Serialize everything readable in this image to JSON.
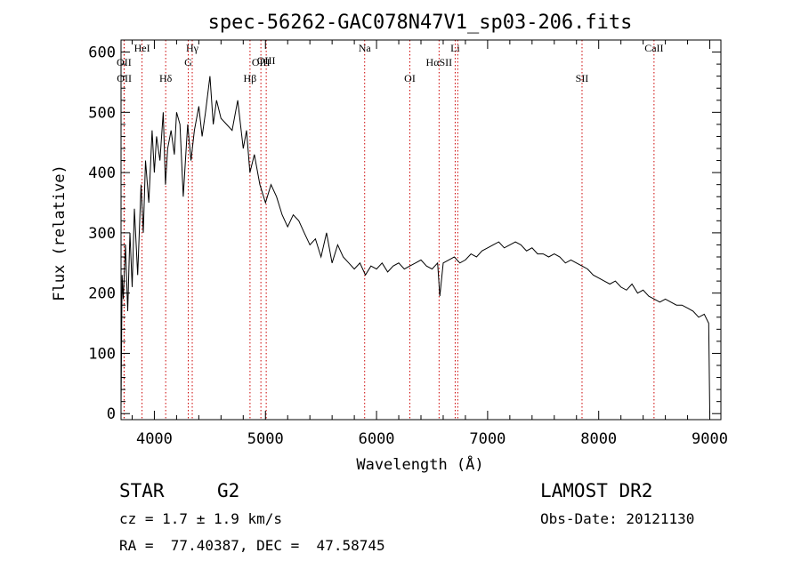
{
  "chart_data": {
    "type": "line",
    "title": "spec-56262-GAC078N47V1_sp03-206.fits",
    "xlabel": "Wavelength (Å)",
    "ylabel": "Flux (relative)",
    "xlim": [
      3700,
      9100
    ],
    "ylim": [
      -10,
      620
    ],
    "x_ticks": [
      4000,
      5000,
      6000,
      7000,
      8000,
      9000
    ],
    "y_ticks": [
      0,
      100,
      200,
      300,
      400,
      500,
      600
    ],
    "grid": false,
    "line_color": "#000000",
    "marker_color": "#cc0000",
    "series": [
      {
        "x": [
          3700,
          3710,
          3720,
          3740,
          3760,
          3780,
          3800,
          3820,
          3850,
          3880,
          3900,
          3920,
          3950,
          3980,
          4000,
          4020,
          4050,
          4080,
          4100,
          4120,
          4150,
          4180,
          4200,
          4230,
          4260,
          4290,
          4300,
          4330,
          4360,
          4400,
          4430,
          4460,
          4500,
          4530,
          4560,
          4600,
          4650,
          4700,
          4750,
          4800,
          4830,
          4860,
          4900,
          4950,
          5000,
          5050,
          5100,
          5150,
          5200,
          5250,
          5300,
          5350,
          5400,
          5450,
          5500,
          5550,
          5600,
          5650,
          5700,
          5750,
          5800,
          5850,
          5900,
          5950,
          6000,
          6050,
          6100,
          6150,
          6200,
          6250,
          6300,
          6350,
          6400,
          6450,
          6500,
          6550,
          6570,
          6600,
          6650,
          6700,
          6750,
          6800,
          6850,
          6900,
          6950,
          7000,
          7050,
          7100,
          7150,
          7200,
          7250,
          7300,
          7350,
          7400,
          7450,
          7500,
          7550,
          7600,
          7650,
          7700,
          7750,
          7800,
          7850,
          7900,
          7950,
          8000,
          8050,
          8100,
          8150,
          8200,
          8250,
          8300,
          8350,
          8400,
          8450,
          8500,
          8550,
          8600,
          8650,
          8700,
          8750,
          8800,
          8850,
          8900,
          8950,
          8990,
          9000
        ],
        "y": [
          10,
          230,
          190,
          280,
          170,
          300,
          210,
          340,
          230,
          380,
          300,
          420,
          350,
          470,
          400,
          460,
          420,
          500,
          380,
          440,
          470,
          430,
          500,
          480,
          360,
          450,
          480,
          420,
          470,
          510,
          460,
          500,
          560,
          480,
          520,
          490,
          480,
          470,
          520,
          440,
          470,
          400,
          430,
          380,
          350,
          380,
          360,
          330,
          310,
          330,
          320,
          300,
          280,
          290,
          260,
          300,
          250,
          280,
          260,
          250,
          240,
          250,
          230,
          245,
          240,
          250,
          235,
          245,
          250,
          240,
          245,
          250,
          255,
          245,
          240,
          250,
          195,
          250,
          255,
          260,
          250,
          255,
          265,
          260,
          270,
          275,
          280,
          285,
          275,
          280,
          285,
          280,
          270,
          275,
          265,
          265,
          260,
          265,
          260,
          250,
          255,
          250,
          245,
          240,
          230,
          225,
          220,
          215,
          220,
          210,
          205,
          215,
          200,
          205,
          195,
          190,
          185,
          190,
          185,
          180,
          180,
          175,
          170,
          160,
          165,
          150,
          0
        ]
      }
    ],
    "lines": [
      {
        "label": "OII",
        "x": 3727,
        "row": 2
      },
      {
        "label": "OII",
        "x": 3729,
        "row": 3
      },
      {
        "label": "HeI",
        "x": 3889,
        "row": 1
      },
      {
        "label": "Hδ",
        "x": 4102,
        "row": 3
      },
      {
        "label": "Hγ",
        "x": 4341,
        "row": 1
      },
      {
        "label": "G",
        "x": 4305,
        "row": 2
      },
      {
        "label": "Hβ",
        "x": 4861,
        "row": 3
      },
      {
        "label": "OIII",
        "x": 4959,
        "row": 2
      },
      {
        "label": "OIII",
        "x": 5007,
        "row": 0
      },
      {
        "label": "Na",
        "x": 5893,
        "row": 1
      },
      {
        "label": "OI",
        "x": 6300,
        "row": 3
      },
      {
        "label": "HαSII",
        "x": 6563,
        "row": 2
      },
      {
        "label": "Li",
        "x": 6708,
        "row": 1
      },
      {
        "label": "",
        "x": 6731,
        "row": 0
      },
      {
        "label": "SII",
        "x": 7850,
        "row": 3
      },
      {
        "label": "CaII",
        "x": 8498,
        "row": 1
      }
    ]
  },
  "footer": {
    "class_label": "STAR",
    "subclass_label": "G2",
    "survey_label": "LAMOST DR2",
    "cz_text": "cz = 1.7 ± 1.9 km/s",
    "obs_date_text": "Obs-Date: 20121130",
    "coords_text": "RA =  77.40387, DEC =  47.58745"
  }
}
